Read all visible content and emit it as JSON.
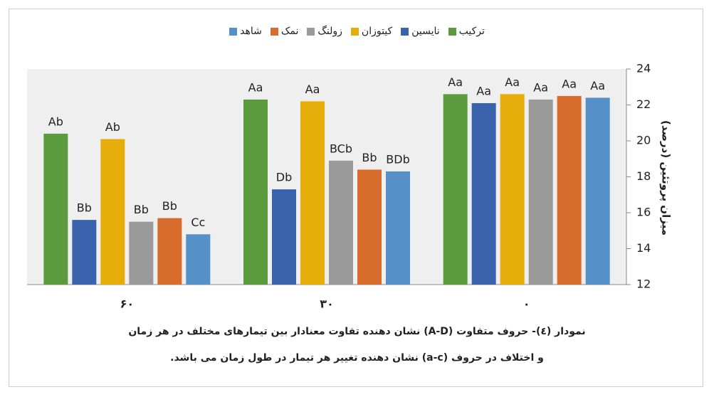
{
  "chart_data": {
    "type": "bar",
    "y_label": "میزان پروتئین (درصد)",
    "categories": [
      "۰",
      "۳۰",
      "۶۰"
    ],
    "series": [
      {
        "name": "ترکیب",
        "color": "#5b9b3e",
        "values": [
          22.6,
          22.3,
          20.4
        ],
        "value_labels": [
          "Aa",
          "Aa",
          "Ab"
        ]
      },
      {
        "name": "نایسین",
        "color": "#3a62ad",
        "values": [
          22.1,
          17.3,
          15.6
        ],
        "value_labels": [
          "Aa",
          "Db",
          "Bb"
        ]
      },
      {
        "name": "کیتوزان",
        "color": "#e6ac0a",
        "values": [
          22.6,
          22.2,
          20.1
        ],
        "value_labels": [
          "Aa",
          "Aa",
          "Ab"
        ]
      },
      {
        "name": "زولنگ",
        "color": "#9a9a9a",
        "values": [
          22.3,
          18.9,
          15.5
        ],
        "value_labels": [
          "Aa",
          "BCb",
          "Bb"
        ]
      },
      {
        "name": "نمک",
        "color": "#d86c2c",
        "values": [
          22.5,
          18.4,
          15.7
        ],
        "value_labels": [
          "Aa",
          "Bb",
          "Bb"
        ]
      },
      {
        "name": "شاهد",
        "color": "#5591c8",
        "values": [
          22.4,
          18.3,
          14.8
        ],
        "value_labels": [
          "Aa",
          "BDb",
          "Cc"
        ]
      }
    ],
    "ylim": [
      12,
      24
    ],
    "yticks": [
      12,
      14,
      16,
      18,
      20,
      22,
      24
    ],
    "direction": "rtl"
  },
  "caption": [
    "نمودار (٤)- حروف متفاوت (A-D) نشان دهنده تفاوت معنادار بین تیمارهای مختلف در هر زمان",
    "و اختلاف در حروف (a-c) نشان دهنده تغییر هر تیمار در طول زمان می باشد."
  ]
}
